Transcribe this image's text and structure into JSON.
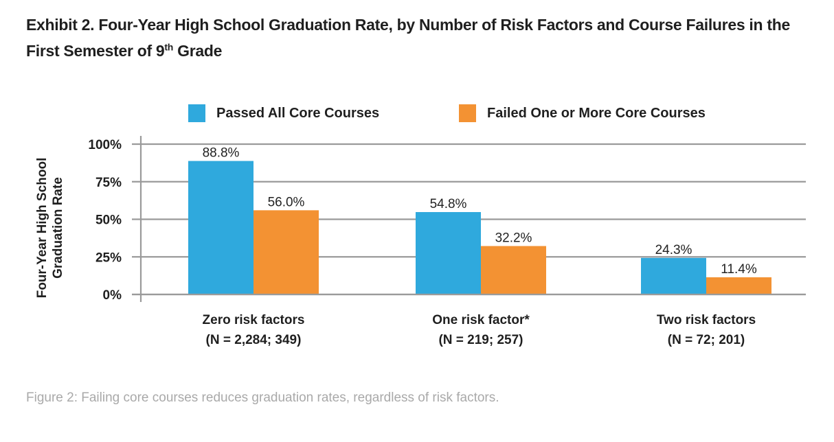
{
  "title": {
    "main": "Exhibit 2. Four-Year High School Graduation Rate, by Number of Risk Factors and Course Failures in the First Semester of 9",
    "superscript": "th",
    "end": " Grade"
  },
  "caption": "Figure 2: Failing core courses reduces graduation rates, regardless of risk factors.",
  "chart_data": {
    "type": "bar",
    "title": "Exhibit 2. Four-Year High School Graduation Rate, by Number of Risk Factors and Course Failures in the First Semester of 9th Grade",
    "xlabel": "",
    "ylabel": "Four-Year High School Graduation Rate",
    "ylim": [
      0,
      100
    ],
    "yticks": [
      0,
      25,
      50,
      75,
      100
    ],
    "ytick_labels": [
      "0%",
      "25%",
      "50%",
      "75%",
      "100%"
    ],
    "grid": true,
    "legend_position": "top",
    "categories": [
      {
        "line1": "Zero risk factors",
        "line2": "(N = 2,284; 349)"
      },
      {
        "line1": "One risk factor*",
        "line2": "(N = 219; 257)"
      },
      {
        "line1": "Two risk factors",
        "line2": "(N = 72; 201)"
      }
    ],
    "series": [
      {
        "name": "Passed All Core Courses",
        "color": "#2fa9dd",
        "values": [
          88.8,
          54.8,
          24.3
        ],
        "labels": [
          "88.8%",
          "54.8%",
          "24.3%"
        ]
      },
      {
        "name": "Failed One or More Core Courses",
        "color": "#f39233",
        "values": [
          56.0,
          32.2,
          11.4
        ],
        "labels": [
          "56.0%",
          "32.2%",
          "11.4%"
        ]
      }
    ]
  }
}
